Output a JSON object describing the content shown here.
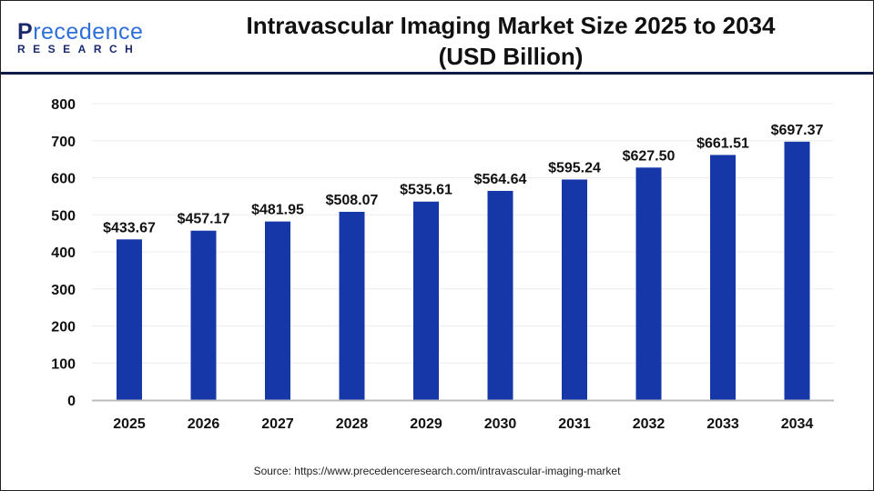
{
  "logo": {
    "line1": "Precedence",
    "line2": "RESEARCH"
  },
  "chart_data": {
    "type": "bar",
    "title": "Intravascular Imaging Market Size 2025 to 2034 (USD Billion)",
    "title_lines": [
      "Intravascular Imaging Market Size 2025 to 2034",
      "(USD Billion)"
    ],
    "categories": [
      "2025",
      "2026",
      "2027",
      "2028",
      "2029",
      "2030",
      "2031",
      "2032",
      "2033",
      "2034"
    ],
    "values": [
      433.67,
      457.17,
      481.95,
      508.07,
      535.61,
      564.64,
      595.24,
      627.5,
      661.51,
      697.37
    ],
    "data_labels": [
      "$433.67",
      "$457.17",
      "$481.95",
      "$508.07",
      "$535.61",
      "$564.64",
      "$595.24",
      "$627.50",
      "$661.51",
      "$697.37"
    ],
    "yticks": [
      0,
      100,
      200,
      300,
      400,
      500,
      600,
      700,
      800
    ],
    "ylim": [
      0,
      800
    ],
    "xlabel": "",
    "ylabel": "",
    "grid": true,
    "bar_color": "#1537a8"
  },
  "source": "Source: https://www.precedenceresearch.com/intravascular-imaging-market"
}
